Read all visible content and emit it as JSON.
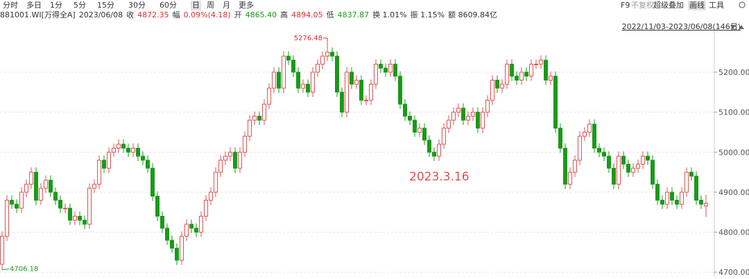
{
  "toolbar": {
    "left": [
      "分时",
      "多日",
      "1分",
      "5分",
      "15分",
      "30分",
      "60分",
      "日",
      "周",
      "月",
      "更多"
    ],
    "selected": "日",
    "right": [
      "F9",
      "不复权",
      "超级叠加",
      "画线",
      "工具"
    ]
  },
  "info": [
    {
      "text": "881001.WI[万得全A]",
      "color": "#333333"
    },
    {
      "text": "2023/06/08",
      "color": "#333333"
    },
    {
      "text": "收",
      "color": "#333333"
    },
    {
      "text": "4872.35",
      "color": "#e03030"
    },
    {
      "text": "幅",
      "color": "#333333"
    },
    {
      "text": "0.09%(4.18)",
      "color": "#e03030"
    },
    {
      "text": "开",
      "color": "#333333"
    },
    {
      "text": "4865.40",
      "color": "#1a9a1a"
    },
    {
      "text": "高",
      "color": "#333333"
    },
    {
      "text": "4894.05",
      "color": "#e03030"
    },
    {
      "text": "低",
      "color": "#333333"
    },
    {
      "text": "4837.87",
      "color": "#1a9a1a"
    },
    {
      "text": "换 1.01%",
      "color": "#333333"
    },
    {
      "text": "振 1.15%",
      "color": "#333333"
    },
    {
      "text": "额 8609.84亿",
      "color": "#333333"
    }
  ],
  "range": "2022/11/03-2023/06/08(146日)",
  "chart_data": {
    "type": "candlestick",
    "up_color": "#e05050",
    "down_color": "#1a9a1a",
    "grid": true,
    "ylim": [
      4690,
      5304
    ],
    "yticks": [
      {
        "value": 4700,
        "label": "4700.00"
      },
      {
        "value": 4800,
        "label": "4800.00"
      },
      {
        "value": 4900,
        "label": "4900.00"
      },
      {
        "value": 5000,
        "label": "5000.00"
      },
      {
        "value": 5100,
        "label": "5100.00"
      },
      {
        "value": 5200,
        "label": "5200.00"
      }
    ],
    "max_label": "5276.48",
    "min_label": "4706.18",
    "annotation": {
      "text": "2023.3.16",
      "color": "#e05050"
    },
    "open": [
      4720,
      4790,
      4880,
      4870,
      4860,
      4900,
      4920,
      4950,
      4880,
      4910,
      4930,
      4900,
      4880,
      4860,
      4860,
      4830,
      4840,
      4830,
      4820,
      4910,
      4920,
      4980,
      4960,
      5000,
      5010,
      5020,
      5010,
      5000,
      5010,
      4990,
      4980,
      4960,
      4890,
      4840,
      4810,
      4780,
      4760,
      4730,
      4790,
      4820,
      4810,
      4800,
      4840,
      4880,
      4900,
      4950,
      4980,
      4990,
      5000,
      4960,
      5000,
      5040,
      5080,
      5090,
      5080,
      5120,
      5160,
      5200,
      5160,
      5240,
      5230,
      5200,
      5160,
      5170,
      5150,
      5200,
      5220,
      5240,
      5250,
      5240,
      5150,
      5100,
      5200,
      5170,
      5180,
      5130,
      5130,
      5170,
      5220,
      5210,
      5200,
      5220,
      5190,
      5120,
      5090,
      5080,
      5050,
      5060,
      5030,
      5000,
      4990,
      5020,
      5060,
      5080,
      5100,
      5110,
      5080,
      5090,
      5100,
      5060,
      5100,
      5130,
      5180,
      5160,
      5170,
      5220,
      5190,
      5180,
      5200,
      5190,
      5220,
      5220,
      5230,
      5180,
      5190,
      5060,
      5010,
      4920,
      4950,
      4980,
      5040,
      5050,
      5070,
      5010,
      5000,
      4990,
      4960,
      4920,
      4990,
      4970,
      4950,
      4960,
      4970,
      4990,
      4980,
      4920,
      4880,
      4870,
      4900,
      4880,
      4870,
      4900,
      4950,
      4940,
      4880,
      4865.4
    ],
    "high": [
      4802,
      4892,
      4892,
      4882,
      4912,
      4932,
      4962,
      4962,
      4922,
      4942,
      4942,
      4912,
      4892,
      4872,
      4872,
      4852,
      4852,
      4842,
      4922,
      4932,
      4992,
      4992,
      5012,
      5022,
      5032,
      5032,
      5022,
      5022,
      5022,
      5002,
      4992,
      4972,
      4902,
      4852,
      4822,
      4792,
      4772,
      4802,
      4832,
      4832,
      4822,
      4852,
      4892,
      4912,
      4962,
      4992,
      5002,
      5012,
      5012,
      5012,
      5052,
      5092,
      5102,
      5102,
      5132,
      5172,
      5212,
      5212,
      5252,
      5252,
      5242,
      5212,
      5182,
      5182,
      5212,
      5232,
      5252,
      5276.48,
      5262,
      5252,
      5162,
      5212,
      5212,
      5192,
      5192,
      5142,
      5182,
      5232,
      5232,
      5222,
      5232,
      5232,
      5202,
      5132,
      5102,
      5092,
      5072,
      5072,
      5042,
      5012,
      5032,
      5072,
      5092,
      5112,
      5122,
      5122,
      5102,
      5112,
      5112,
      5112,
      5142,
      5192,
      5192,
      5182,
      5232,
      5232,
      5202,
      5212,
      5212,
      5232,
      5232,
      5242,
      5242,
      5202,
      5202,
      5072,
      5022,
      4962,
      4992,
      5052,
      5062,
      5082,
      5082,
      5022,
      5012,
      5002,
      4972,
      5002,
      5002,
      4982,
      4972,
      4982,
      5002,
      5002,
      4992,
      4932,
      4892,
      4912,
      4912,
      4892,
      4912,
      4962,
      4962,
      4952,
      4892,
      4894.05
    ],
    "low": [
      4706.18,
      4778,
      4858,
      4848,
      4848,
      4888,
      4908,
      4868,
      4868,
      4898,
      4888,
      4868,
      4848,
      4848,
      4818,
      4818,
      4818,
      4808,
      4808,
      4898,
      4908,
      4948,
      4948,
      4988,
      4998,
      4998,
      4988,
      4988,
      4978,
      4968,
      4948,
      4878,
      4828,
      4798,
      4768,
      4748,
      4718,
      4718,
      4778,
      4798,
      4788,
      4788,
      4828,
      4868,
      4888,
      4938,
      4968,
      4978,
      4948,
      4948,
      4988,
      5028,
      5068,
      5068,
      5068,
      5108,
      5148,
      5148,
      5148,
      5218,
      5188,
      5148,
      5148,
      5138,
      5138,
      5188,
      5208,
      5228,
      5228,
      5138,
      5088,
      5088,
      5158,
      5158,
      5118,
      5118,
      5118,
      5158,
      5198,
      5188,
      5188,
      5178,
      5108,
      5078,
      5068,
      5038,
      5038,
      5018,
      4988,
      4978,
      4978,
      5008,
      5048,
      5068,
      5088,
      5068,
      5068,
      5078,
      5048,
      5048,
      5088,
      5118,
      5148,
      5148,
      5158,
      5178,
      5168,
      5168,
      5178,
      5178,
      5208,
      5208,
      5168,
      5168,
      5048,
      4998,
      4908,
      4908,
      4938,
      4968,
      5028,
      5038,
      4998,
      4988,
      4978,
      4948,
      4908,
      4908,
      4958,
      4938,
      4938,
      4948,
      4958,
      4968,
      4908,
      4868,
      4858,
      4858,
      4868,
      4858,
      4858,
      4888,
      4928,
      4868,
      4858,
      4837.87
    ],
    "close": [
      4790,
      4880,
      4870,
      4860,
      4900,
      4920,
      4950,
      4880,
      4910,
      4930,
      4900,
      4880,
      4860,
      4860,
      4830,
      4840,
      4830,
      4820,
      4910,
      4920,
      4980,
      4960,
      5000,
      5010,
      5020,
      5010,
      5000,
      5010,
      4990,
      4980,
      4960,
      4890,
      4840,
      4810,
      4780,
      4760,
      4730,
      4790,
      4820,
      4810,
      4800,
      4840,
      4880,
      4900,
      4950,
      4980,
      4990,
      5000,
      4960,
      5000,
      5040,
      5080,
      5090,
      5080,
      5120,
      5160,
      5200,
      5160,
      5240,
      5230,
      5200,
      5160,
      5170,
      5150,
      5200,
      5220,
      5240,
      5250,
      5240,
      5150,
      5100,
      5200,
      5170,
      5180,
      5130,
      5130,
      5170,
      5220,
      5210,
      5200,
      5220,
      5190,
      5120,
      5090,
      5080,
      5050,
      5060,
      5030,
      5000,
      4990,
      5020,
      5060,
      5080,
      5100,
      5110,
      5080,
      5090,
      5100,
      5060,
      5100,
      5130,
      5180,
      5160,
      5170,
      5220,
      5190,
      5180,
      5200,
      5190,
      5220,
      5220,
      5230,
      5180,
      5190,
      5060,
      5010,
      4920,
      4950,
      4980,
      5040,
      5050,
      5070,
      5010,
      5000,
      4990,
      4960,
      4920,
      4990,
      4970,
      4950,
      4960,
      4970,
      4990,
      4980,
      4920,
      4880,
      4870,
      4900,
      4880,
      4870,
      4900,
      4950,
      4940,
      4880,
      4870,
      4872.35
    ]
  }
}
